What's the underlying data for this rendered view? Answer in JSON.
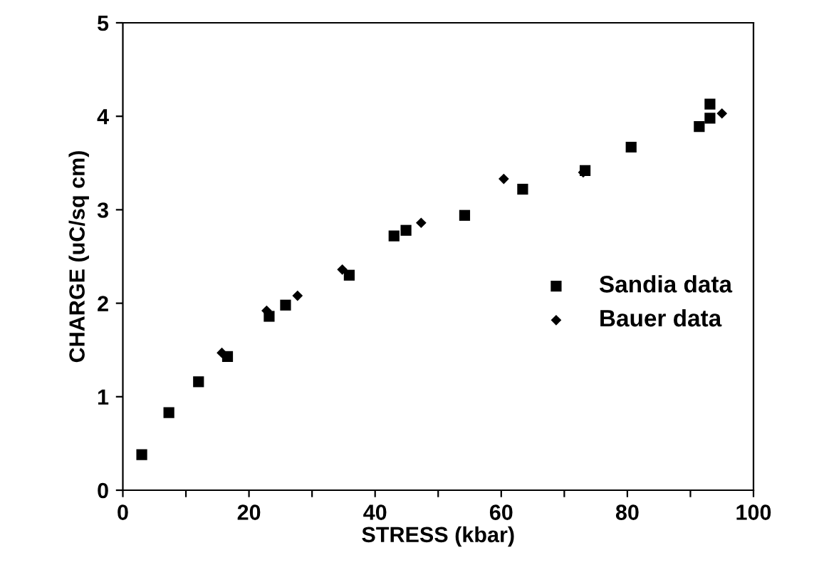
{
  "chart_data": {
    "type": "scatter",
    "xlabel": "STRESS (kbar)",
    "ylabel": "CHARGE (uC/sq cm)",
    "xlim": [
      0,
      100
    ],
    "ylim": [
      0,
      5
    ],
    "xticks": [
      0,
      {
        "value": 10,
        "label": null
      },
      20,
      {
        "value": 30,
        "label": null
      },
      40,
      {
        "value": 50,
        "label": null
      },
      60,
      {
        "value": 70,
        "label": null
      },
      80,
      {
        "value": 90,
        "label": null
      },
      100
    ],
    "yticks": [
      0,
      1,
      2,
      3,
      4,
      5
    ],
    "grid": false,
    "legend": "right",
    "series": [
      {
        "name": "Sandia data",
        "color": "#000000",
        "marker": "square",
        "x": [
          3.0,
          7.3,
          12.0,
          16.6,
          23.2,
          25.8,
          35.9,
          43.0,
          44.9,
          54.2,
          63.4,
          73.3,
          80.6,
          91.4,
          93.1,
          93.1
        ],
        "values": [
          0.38,
          0.83,
          1.16,
          1.43,
          1.86,
          1.98,
          2.3,
          2.72,
          2.78,
          2.94,
          3.22,
          3.42,
          3.67,
          3.89,
          4.13,
          3.98
        ]
      },
      {
        "name": "Bauer data",
        "color": "#000000",
        "marker": "diamond",
        "x": [
          15.7,
          22.8,
          27.7,
          34.8,
          47.3,
          60.4,
          73.0,
          95.0
        ],
        "values": [
          1.47,
          1.92,
          2.08,
          2.36,
          2.86,
          3.33,
          3.4,
          4.03
        ]
      }
    ]
  }
}
